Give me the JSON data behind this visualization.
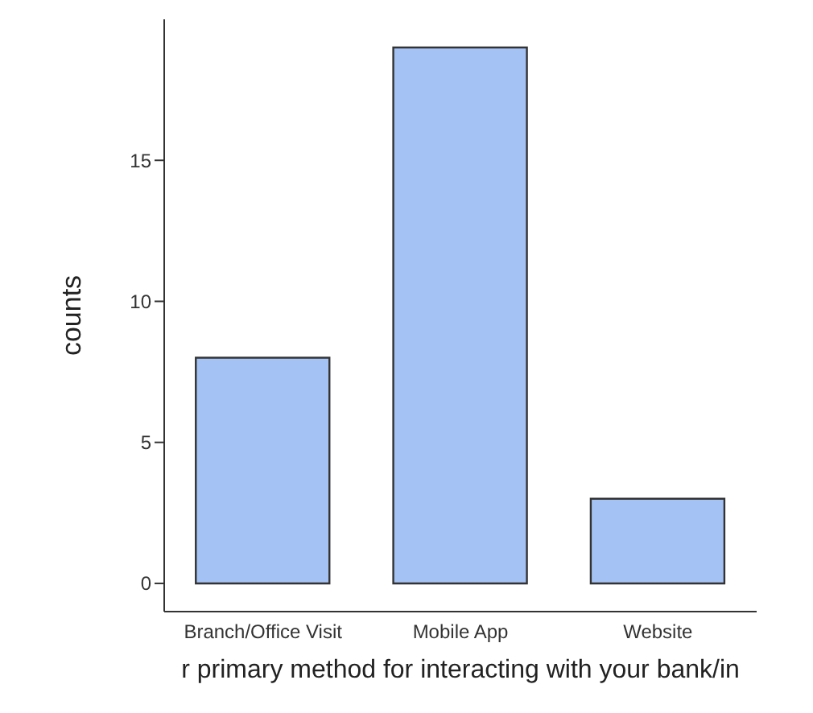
{
  "chart_data": {
    "type": "bar",
    "xlabel": "r primary method for interacting with your bank/in",
    "ylabel": "counts",
    "categories": [
      "Branch/Office Visit",
      "Mobile App",
      "Website"
    ],
    "values": [
      8,
      19,
      3
    ],
    "color": "#a4c2f4",
    "ylim": [
      -1,
      20
    ],
    "yticks": [
      0,
      5,
      10,
      15
    ]
  }
}
